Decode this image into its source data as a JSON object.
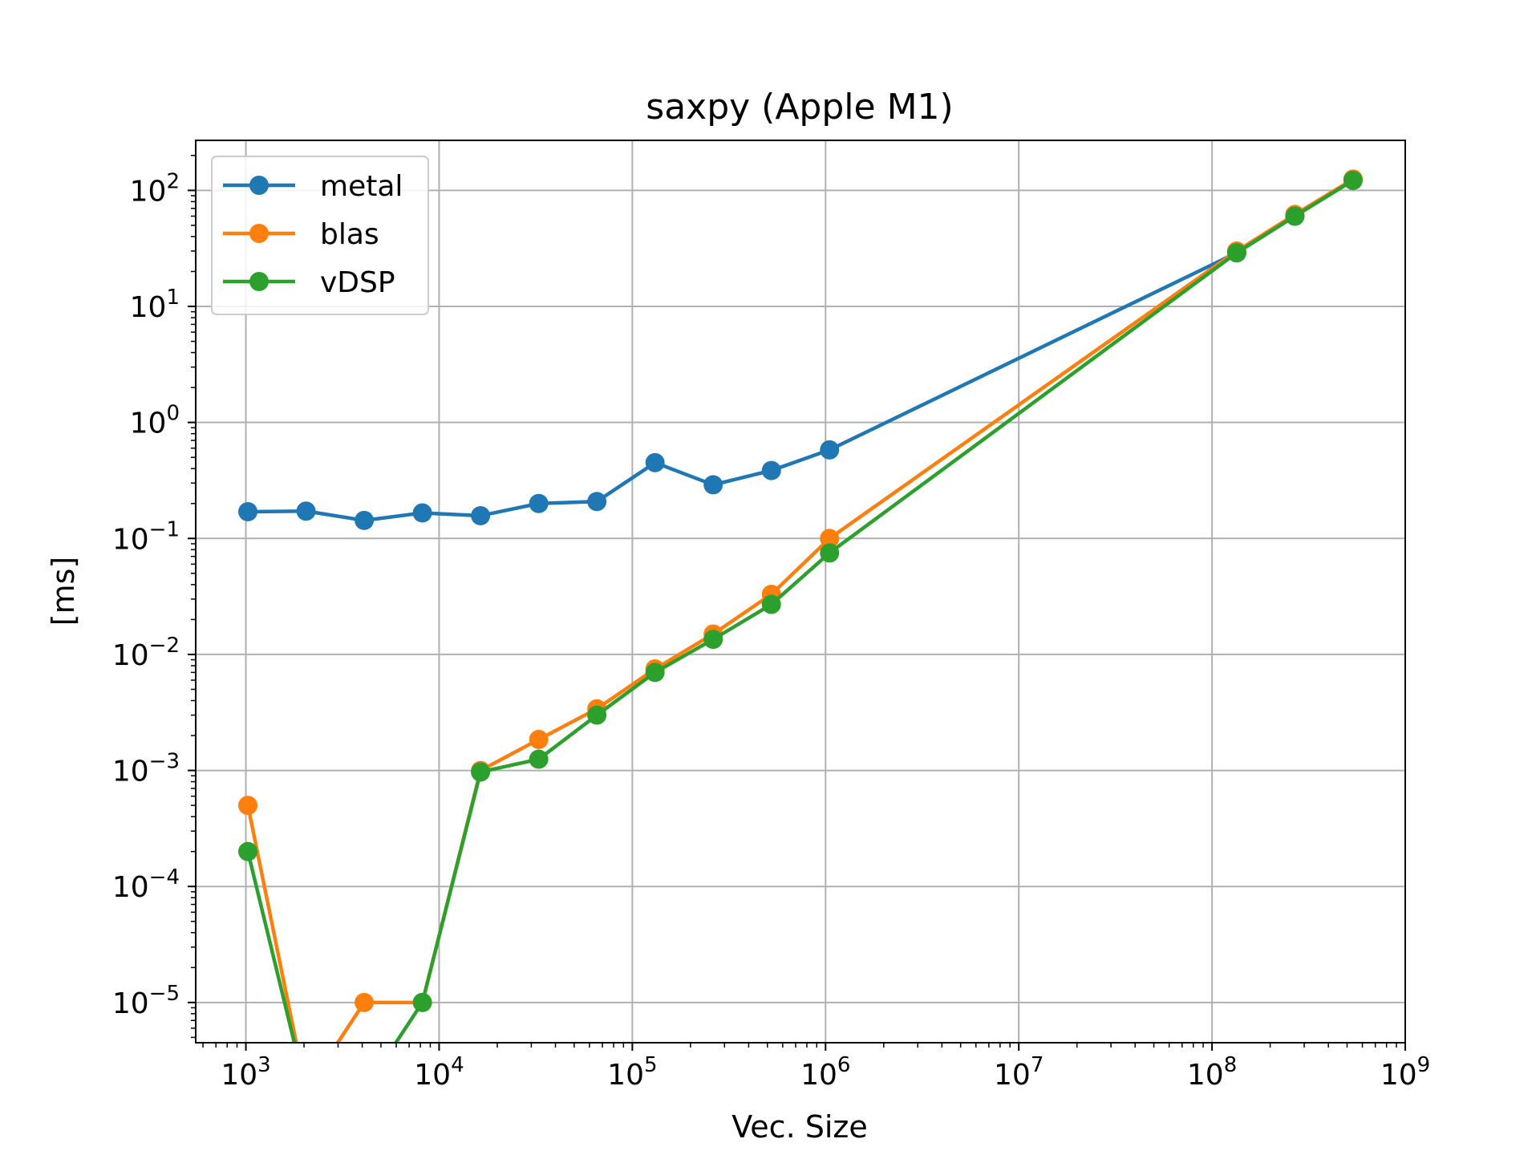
{
  "chart_data": {
    "type": "line",
    "title": "saxpy (Apple M1)",
    "xlabel": "Vec. Size",
    "ylabel": "[ms]",
    "xscale": "log",
    "yscale": "log",
    "xlim": [
      550,
      1000000000
    ],
    "ylim": [
      4.5e-06,
      270
    ],
    "grid": true,
    "legend_position": "top-left",
    "x_ticks": [
      {
        "value": 1000,
        "base": "10",
        "exp": "3"
      },
      {
        "value": 10000,
        "base": "10",
        "exp": "4"
      },
      {
        "value": 100000,
        "base": "10",
        "exp": "5"
      },
      {
        "value": 1000000,
        "base": "10",
        "exp": "6"
      },
      {
        "value": 10000000,
        "base": "10",
        "exp": "7"
      },
      {
        "value": 100000000,
        "base": "10",
        "exp": "8"
      },
      {
        "value": 1000000000,
        "base": "10",
        "exp": "9"
      }
    ],
    "y_ticks": [
      {
        "value": 1e-05,
        "base": "10",
        "exp": "−5"
      },
      {
        "value": 0.0001,
        "base": "10",
        "exp": "−4"
      },
      {
        "value": 0.001,
        "base": "10",
        "exp": "−3"
      },
      {
        "value": 0.01,
        "base": "10",
        "exp": "−2"
      },
      {
        "value": 0.1,
        "base": "10",
        "exp": "−1"
      },
      {
        "value": 1,
        "base": "10",
        "exp": "0"
      },
      {
        "value": 10,
        "base": "10",
        "exp": "1"
      },
      {
        "value": 100,
        "base": "10",
        "exp": "2"
      }
    ],
    "series": [
      {
        "name": "metal",
        "color": "#1f77b4",
        "x": [
          1024,
          2048,
          4096,
          8192,
          16384,
          32768,
          65536,
          131072,
          262144,
          524288,
          1048576,
          134217728,
          268435456,
          536870912
        ],
        "y": [
          0.17,
          0.172,
          0.143,
          0.166,
          0.157,
          0.2,
          0.208,
          0.45,
          0.29,
          0.385,
          0.58,
          29,
          60,
          125
        ]
      },
      {
        "name": "blas",
        "color": "#ff7f0e",
        "x": [
          1024,
          2048,
          4096,
          8192,
          16384,
          32768,
          65536,
          131072,
          262144,
          524288,
          1048576,
          134217728,
          268435456,
          536870912
        ],
        "y": [
          0.0005,
          0,
          1e-05,
          1e-05,
          0.001,
          0.00185,
          0.0034,
          0.0075,
          0.015,
          0.033,
          0.1,
          30,
          62,
          125
        ]
      },
      {
        "name": "vDSP",
        "color": "#2ca02c",
        "x": [
          1024,
          2048,
          4096,
          8192,
          16384,
          32768,
          65536,
          131072,
          262144,
          524288,
          1048576,
          134217728,
          268435456,
          536870912
        ],
        "y": [
          0.0002,
          0,
          0,
          1e-05,
          0.00097,
          0.00125,
          0.003,
          0.007,
          0.0135,
          0.027,
          0.075,
          29,
          60,
          122
        ]
      }
    ]
  }
}
